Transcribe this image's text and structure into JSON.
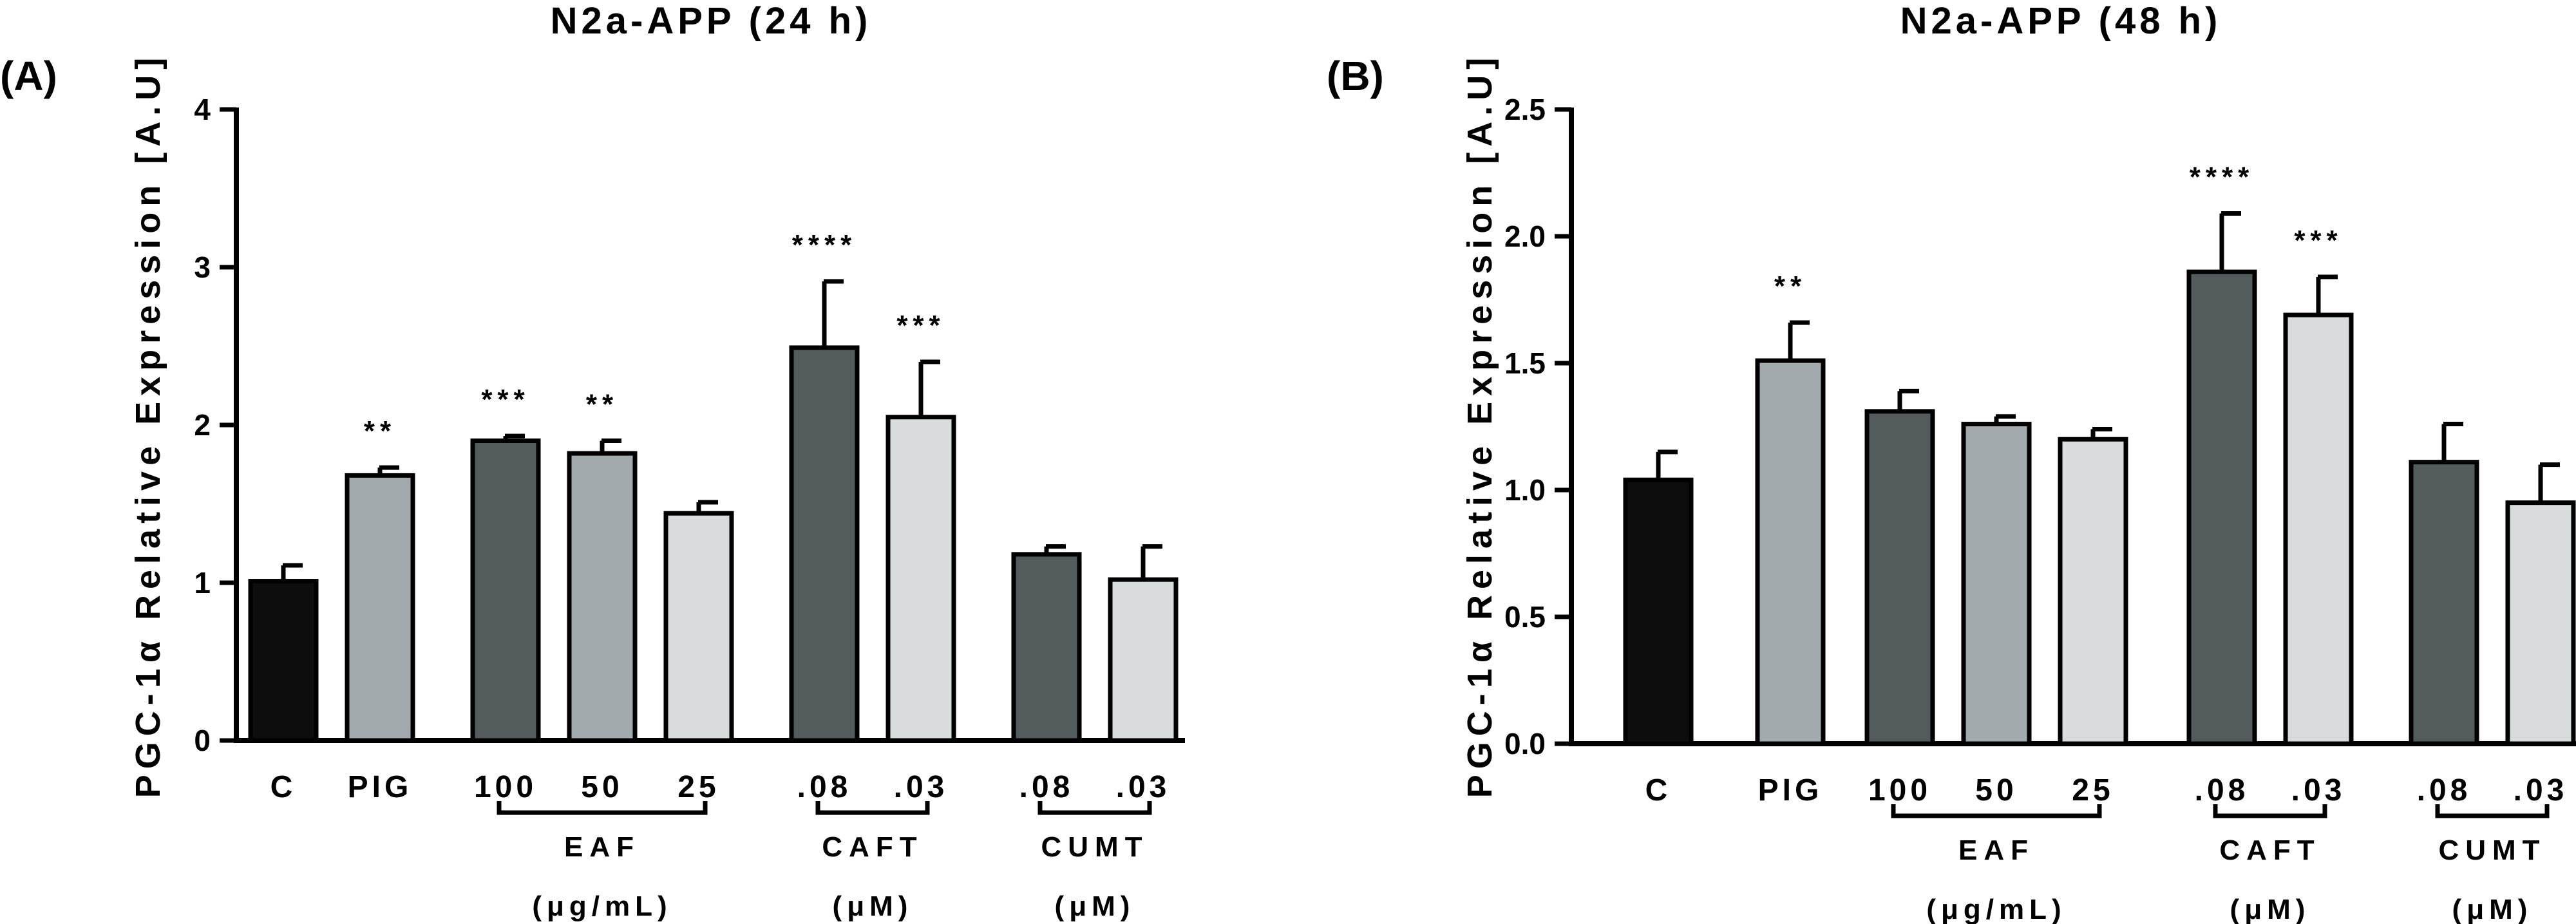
{
  "colors": {
    "control": "#0d0d0d",
    "pig": "#a3aaae",
    "dark": "#545b5d",
    "mid": "#a3aaae",
    "light": "#d9dcdc",
    "axis": "#000000"
  },
  "chart_data": [
    {
      "type": "bar",
      "panel_label": "(A)",
      "title": "N2a-APP (24 h)",
      "ylabel": "PGC-1α Relative Expression [A.U]",
      "ylim": [
        0,
        4
      ],
      "yticks": [
        0,
        1,
        2,
        3,
        4
      ],
      "ytick_labels": [
        "0",
        "1",
        "2",
        "3",
        "4"
      ],
      "categories": [
        "C",
        "PIG",
        "100",
        "50",
        "25",
        ".08",
        ".03",
        ".08",
        ".03"
      ],
      "values": [
        1.01,
        1.68,
        1.9,
        1.82,
        1.44,
        2.49,
        2.05,
        1.18,
        1.02
      ],
      "errors": [
        0.1,
        0.05,
        0.03,
        0.08,
        0.07,
        0.42,
        0.35,
        0.05,
        0.21
      ],
      "significance": [
        "",
        "**",
        "***",
        "**",
        "",
        "****",
        "***",
        "",
        ""
      ],
      "fill_colors": [
        "#0d0d0d",
        "#a3aaae",
        "#545b5d",
        "#a3aaae",
        "#d9dcdc",
        "#545b5d",
        "#d9dcdc",
        "#545b5d",
        "#d9dcdc"
      ],
      "groups": [
        {
          "label": "EAF",
          "unit": "(μg/mL)",
          "bar_start": 2,
          "bar_end": 4
        },
        {
          "label": "CAFT",
          "unit": "(μM)",
          "bar_start": 5,
          "bar_end": 6
        },
        {
          "label": "CUMT",
          "unit": "(μM)",
          "bar_start": 7,
          "bar_end": 8
        }
      ]
    },
    {
      "type": "bar",
      "panel_label": "(B)",
      "title": "N2a-APP (48 h)",
      "ylabel": "PGC-1α Relative Expression [A.U]",
      "ylim": [
        0,
        2.5
      ],
      "yticks": [
        0,
        0.5,
        1,
        1.5,
        2,
        2.5
      ],
      "ytick_labels": [
        "0.0",
        "0.5",
        "1.0",
        "1.5",
        "2.0",
        "2.5"
      ],
      "categories": [
        "C",
        "PIG",
        "100",
        "50",
        "25",
        ".08",
        ".03",
        ".08",
        ".03"
      ],
      "values": [
        1.04,
        1.51,
        1.31,
        1.26,
        1.2,
        1.86,
        1.69,
        1.11,
        0.95
      ],
      "errors": [
        0.11,
        0.15,
        0.08,
        0.03,
        0.04,
        0.23,
        0.15,
        0.15,
        0.15
      ],
      "significance": [
        "",
        "**",
        "",
        "",
        "",
        "****",
        "***",
        "",
        ""
      ],
      "fill_colors": [
        "#0d0d0d",
        "#a3aaae",
        "#545b5d",
        "#a3aaae",
        "#d9dcdc",
        "#545b5d",
        "#d9dcdc",
        "#545b5d",
        "#d9dcdc"
      ],
      "groups": [
        {
          "label": "EAF",
          "unit": "(μg/mL)",
          "bar_start": 2,
          "bar_end": 4
        },
        {
          "label": "CAFT",
          "unit": "(μM)",
          "bar_start": 5,
          "bar_end": 6
        },
        {
          "label": "CUMT",
          "unit": "(μM)",
          "bar_start": 7,
          "bar_end": 8
        }
      ]
    }
  ]
}
